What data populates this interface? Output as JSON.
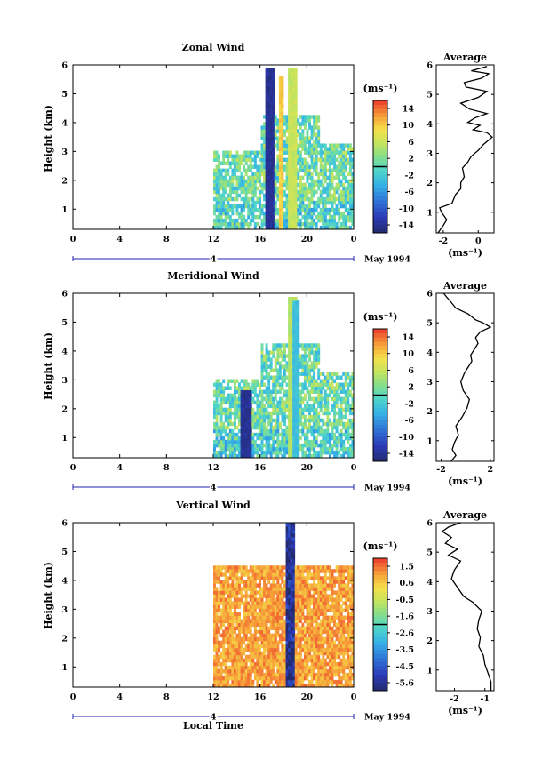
{
  "chart_data": [
    {
      "type": "heatmap",
      "title": "Zonal Wind",
      "ylabel": "Height (km)",
      "x_ticks": [
        "0",
        "4",
        "8",
        "12",
        "16",
        "20",
        "0"
      ],
      "y_ticks": [
        "1",
        "2",
        "3",
        "4",
        "5",
        "6"
      ],
      "xlim": [
        0,
        24
      ],
      "ylim": [
        0.3,
        6
      ],
      "date_bar": {
        "label": "4",
        "note": "May 1994"
      },
      "colorbar": {
        "unit": "(ms⁻¹)",
        "ticks": [
          "14",
          "10",
          "6",
          "2",
          "-2",
          "-6",
          "-10",
          "-14"
        ],
        "range": [
          -16,
          16
        ]
      },
      "avg_panel": {
        "title": "Average",
        "xlabel": "(ms⁻¹)",
        "x_ticks": [
          "-2",
          "0"
        ],
        "xlim": [
          -2.4,
          0.9
        ],
        "y_ticks": [
          "1",
          "2",
          "3",
          "4",
          "5",
          "6"
        ],
        "ylim": [
          0.3,
          6
        ],
        "profile": [
          [
            -2.3,
            0.3
          ],
          [
            -2.0,
            0.55
          ],
          [
            -1.8,
            0.75
          ],
          [
            -2.1,
            1.0
          ],
          [
            -2.2,
            1.15
          ],
          [
            -1.5,
            1.3
          ],
          [
            -1.3,
            1.6
          ],
          [
            -1.0,
            1.8
          ],
          [
            -1.0,
            2.0
          ],
          [
            -0.8,
            2.2
          ],
          [
            -0.9,
            2.5
          ],
          [
            -0.6,
            2.7
          ],
          [
            -0.4,
            2.9
          ],
          [
            0.0,
            3.1
          ],
          [
            0.3,
            3.3
          ],
          [
            0.8,
            3.55
          ],
          [
            0.5,
            3.7
          ],
          [
            -0.3,
            3.8
          ],
          [
            0.1,
            3.95
          ],
          [
            -0.6,
            4.05
          ],
          [
            -0.2,
            4.2
          ],
          [
            0.5,
            4.35
          ],
          [
            -0.5,
            4.5
          ],
          [
            -1.0,
            4.7
          ],
          [
            0.0,
            4.9
          ],
          [
            0.5,
            5.1
          ],
          [
            -0.7,
            5.25
          ],
          [
            -0.8,
            5.4
          ],
          [
            0.2,
            5.55
          ],
          [
            0.6,
            5.7
          ],
          [
            -0.4,
            5.8
          ],
          [
            0.5,
            5.95
          ]
        ]
      },
      "time_range": [
        12,
        24
      ],
      "bands": [
        {
          "t": 16.9,
          "w": 0.8,
          "v": -14,
          "top": 5.8
        },
        {
          "t": 17.8,
          "w": 0.5,
          "v": 10,
          "top": 5.6
        },
        {
          "t": 18.8,
          "w": 0.7,
          "v": 6,
          "top": 5.8
        }
      ]
    },
    {
      "type": "heatmap",
      "title": "Meridional Wind",
      "ylabel": "Height (km)",
      "x_ticks": [
        "0",
        "4",
        "8",
        "12",
        "16",
        "20",
        "0"
      ],
      "y_ticks": [
        "1",
        "2",
        "3",
        "4",
        "5",
        "6"
      ],
      "xlim": [
        0,
        24
      ],
      "ylim": [
        0.3,
        6
      ],
      "date_bar": {
        "label": "4",
        "note": "May 1994"
      },
      "colorbar": {
        "unit": "(ms⁻¹)",
        "ticks": [
          "14",
          "10",
          "6",
          "2",
          "-2",
          "-6",
          "-10",
          "-14"
        ],
        "range": [
          -16,
          16
        ]
      },
      "avg_panel": {
        "title": "Average",
        "xlabel": "(ms⁻¹)",
        "x_ticks": [
          "-2",
          "2"
        ],
        "xlim": [
          -2.4,
          2.3
        ],
        "y_ticks": [
          "1",
          "2",
          "3",
          "4",
          "5",
          "6"
        ],
        "ylim": [
          0.3,
          6
        ],
        "profile": [
          [
            -1.2,
            0.3
          ],
          [
            -0.8,
            0.5
          ],
          [
            -1.1,
            0.7
          ],
          [
            -0.9,
            0.95
          ],
          [
            -0.6,
            1.2
          ],
          [
            -0.8,
            1.5
          ],
          [
            -0.3,
            1.8
          ],
          [
            0.1,
            2.1
          ],
          [
            0.3,
            2.4
          ],
          [
            -0.2,
            2.7
          ],
          [
            -0.4,
            3.0
          ],
          [
            -0.1,
            3.3
          ],
          [
            0.2,
            3.5
          ],
          [
            0.5,
            3.7
          ],
          [
            0.4,
            3.9
          ],
          [
            0.7,
            4.1
          ],
          [
            1.0,
            4.3
          ],
          [
            0.8,
            4.5
          ],
          [
            1.2,
            4.7
          ],
          [
            2.0,
            4.85
          ],
          [
            1.4,
            5.0
          ],
          [
            0.8,
            5.1
          ],
          [
            0.2,
            5.3
          ],
          [
            -0.8,
            5.5
          ],
          [
            -1.2,
            5.7
          ],
          [
            -1.5,
            5.85
          ],
          [
            -1.8,
            6.0
          ]
        ]
      },
      "time_range": [
        12,
        24
      ],
      "bands": [
        {
          "t": 14.8,
          "w": 0.9,
          "v": -14,
          "top": 2.6
        },
        {
          "t": 18.7,
          "w": 0.8,
          "v": 5,
          "top": 5.8
        },
        {
          "t": 19.1,
          "w": 0.5,
          "v": -3,
          "top": 5.7
        }
      ]
    },
    {
      "type": "heatmap",
      "title": "Vertical Wind",
      "ylabel": "Height (km)",
      "xlabel": "Local Time",
      "x_ticks": [
        "0",
        "4",
        "8",
        "12",
        "16",
        "20",
        "0"
      ],
      "y_ticks": [
        "1",
        "2",
        "3",
        "4",
        "5",
        "6"
      ],
      "xlim": [
        0,
        24
      ],
      "ylim": [
        0.3,
        6
      ],
      "date_bar": {
        "label": "4",
        "note": "May 1994"
      },
      "colorbar": {
        "unit": "(ms⁻¹)",
        "ticks": [
          "1.5",
          "0.6",
          "-0.5",
          "-1.6",
          "-2.6",
          "-3.5",
          "-4.5",
          "-5.6"
        ],
        "range": [
          -6.1,
          2.1
        ]
      },
      "avg_panel": {
        "title": "Average",
        "xlabel": "(ms⁻¹)",
        "x_ticks": [
          "-2",
          "-1"
        ],
        "xlim": [
          -2.6,
          -0.7
        ],
        "y_ticks": [
          "1",
          "2",
          "3",
          "4",
          "5",
          "6"
        ],
        "ylim": [
          0.3,
          6
        ],
        "profile": [
          [
            -0.8,
            0.3
          ],
          [
            -0.8,
            0.6
          ],
          [
            -0.9,
            0.9
          ],
          [
            -1.0,
            1.2
          ],
          [
            -1.05,
            1.5
          ],
          [
            -1.2,
            1.8
          ],
          [
            -1.15,
            2.1
          ],
          [
            -1.25,
            2.4
          ],
          [
            -1.2,
            2.7
          ],
          [
            -1.1,
            3.0
          ],
          [
            -1.4,
            3.3
          ],
          [
            -1.7,
            3.5
          ],
          [
            -1.9,
            3.8
          ],
          [
            -2.1,
            4.1
          ],
          [
            -2.0,
            4.4
          ],
          [
            -1.8,
            4.7
          ],
          [
            -2.2,
            4.9
          ],
          [
            -1.9,
            5.1
          ],
          [
            -2.3,
            5.3
          ],
          [
            -2.1,
            5.5
          ],
          [
            -2.4,
            5.7
          ],
          [
            -2.2,
            5.85
          ],
          [
            -1.8,
            6.0
          ]
        ]
      },
      "time_range": [
        12,
        24
      ],
      "bands": [
        {
          "t": 18.6,
          "w": 0.9,
          "v": -5.6,
          "top": 6.0
        }
      ]
    }
  ]
}
